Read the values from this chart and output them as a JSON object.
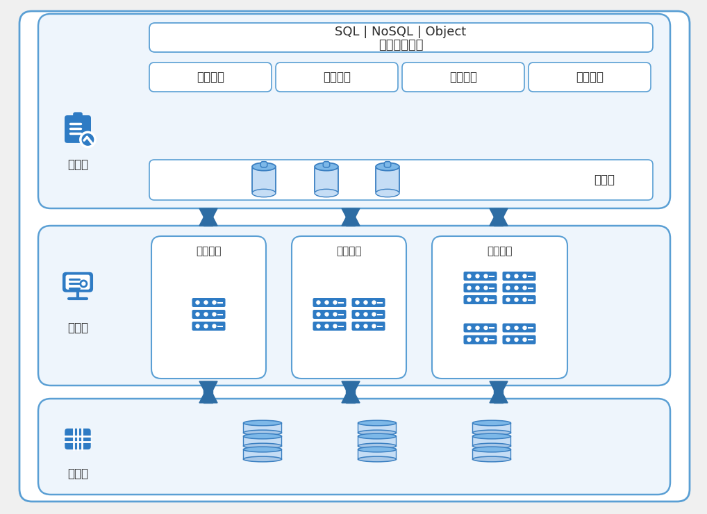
{
  "bg_color": "#f0f0f0",
  "layer_border_color": "#5a9fd4",
  "layer_fill_color": "#eef5fc",
  "box_fill": "#ffffff",
  "box_border": "#5a9fd4",
  "arrow_color": "#2e6da4",
  "text_color": "#2c2c2c",
  "blue_icon_color": "#2e7bc4",
  "title_top": "SQL | NoSQL | Object",
  "title_top2": "多模引擎支持",
  "service_label": "服务层",
  "compute_label": "计算层",
  "storage_label": "存储层",
  "service_boxes": [
    "资源调度",
    "事务管理",
    "优化查询",
    "数据安全"
  ],
  "meta_label": "元数据",
  "compute_instance_label": "计算实例"
}
